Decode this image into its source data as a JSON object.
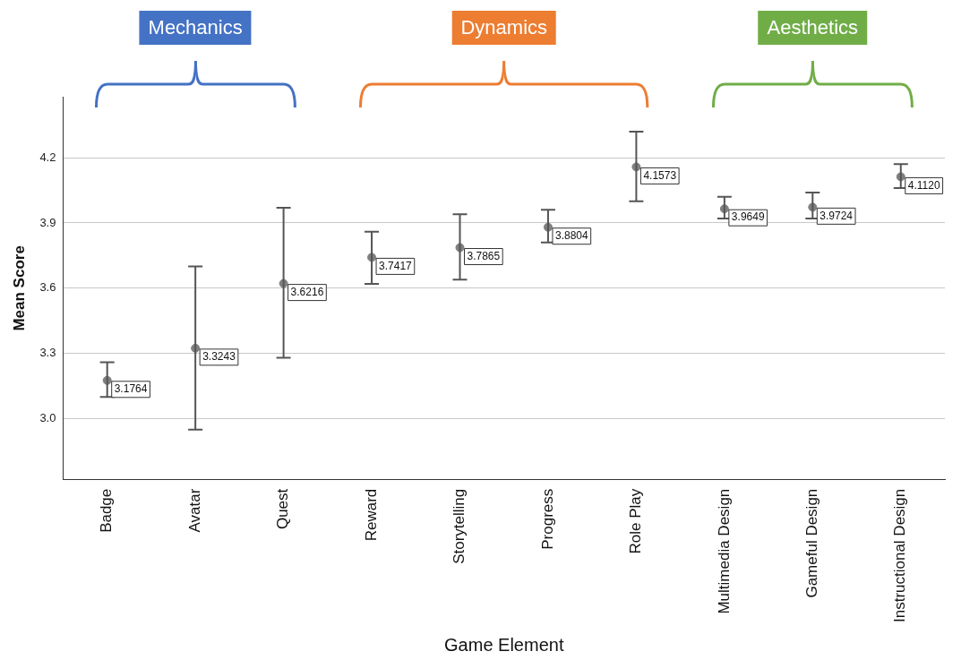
{
  "chart_data": {
    "type": "scatter",
    "xlabel": "Game Element",
    "ylabel": "Mean Score",
    "categories": [
      "Badge",
      "Avatar",
      "Quest",
      "Reward",
      "Storytelling",
      "Progress",
      "Role Play",
      "Multimedia Design",
      "Gameful Design",
      "Instructional Design"
    ],
    "values": [
      3.1764,
      3.3243,
      3.6216,
      3.7417,
      3.7865,
      3.8804,
      4.1573,
      3.9649,
      3.9724,
      4.112
    ],
    "value_labels": [
      "3.1764",
      "3.3243",
      "3.6216",
      "3.7417",
      "3.7865",
      "3.8804",
      "4.1573",
      "3.9649",
      "3.9724",
      "4.1120"
    ],
    "errors": [
      [
        3.1,
        3.26
      ],
      [
        2.95,
        3.7
      ],
      [
        3.28,
        3.97
      ],
      [
        3.62,
        3.86
      ],
      [
        3.64,
        3.94
      ],
      [
        3.81,
        3.96
      ],
      [
        4.0,
        4.32
      ],
      [
        3.92,
        4.02
      ],
      [
        3.92,
        4.04
      ],
      [
        4.06,
        4.17
      ]
    ],
    "color": "#7f7f7f",
    "marker": "circle",
    "grid": "y",
    "legend": false,
    "ylim": [
      2.72,
      4.48
    ],
    "yticks": [
      {
        "value": 3,
        "label": "3.0"
      },
      3.3,
      3.6,
      3.9,
      4.2
    ],
    "annotations": [
      "Mechanics",
      "Dynamics",
      "Aesthetics"
    ]
  }
}
